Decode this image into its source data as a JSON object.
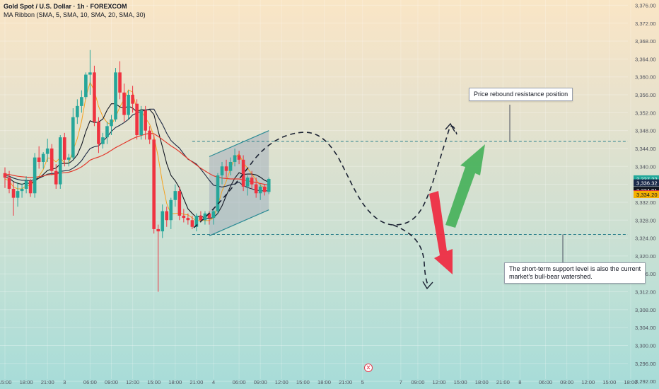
{
  "header": {
    "title": "Gold Spot / U.S. Dollar · 1h · FOREXCOM",
    "indicator": "MA Ribbon (SMA, 5, SMA, 10, SMA, 20, SMA, 30)"
  },
  "annotations": {
    "resistance_note": "Price rebound resistance position",
    "support_note_line1": "The short-term support level is also the current",
    "support_note_line2": "market's bull-bear watershed."
  },
  "chart_data": {
    "type": "candlestick",
    "symbol": "Gold Spot / U.S. Dollar",
    "interval": "1h",
    "source": "FOREXCOM",
    "ylim": [
      3291,
      3377
    ],
    "yticks": [
      3292,
      3296,
      3300,
      3304,
      3308,
      3312,
      3316,
      3320,
      3324,
      3328,
      3332,
      3336,
      3340,
      3344,
      3348,
      3352,
      3356,
      3360,
      3364,
      3368,
      3372,
      3376
    ],
    "ytick_labels": [
      "3,292.00",
      "3,296.00",
      "3,300.00",
      "3,304.00",
      "3,308.00",
      "3,312.00",
      "3,316.00",
      "3,320.00",
      "3,324.00",
      "3,328.00",
      "3,332.00",
      "3,336.00",
      "3,340.00",
      "3,344.00",
      "3,348.00",
      "3,352.00",
      "3,356.00",
      "3,360.00",
      "3,364.00",
      "3,368.00",
      "3,372.00",
      "3,376.00"
    ],
    "xtick_labels": [
      "15:00",
      "18:00",
      "21:00",
      "3",
      "06:00",
      "09:00",
      "12:00",
      "15:00",
      "18:00",
      "21:00",
      "4",
      "06:00",
      "09:00",
      "12:00",
      "15:00",
      "18:00",
      "21:00",
      "5",
      "7",
      "09:00",
      "12:00",
      "15:00",
      "18:00",
      "21:00",
      "8",
      "06:00",
      "09:00",
      "12:00",
      "15:00",
      "18:00"
    ],
    "xtick_bar_index": [
      0,
      5,
      10,
      14,
      20,
      25,
      30,
      35,
      40,
      45,
      49,
      55,
      60,
      65,
      70,
      75,
      80,
      84,
      93,
      97,
      102,
      107,
      112,
      117,
      121,
      127,
      132,
      137,
      142,
      147
    ],
    "candles": [
      [
        3338.5,
        3339.8,
        3335.2,
        3337.5
      ],
      [
        3337.5,
        3339.0,
        3334.0,
        3335.0
      ],
      [
        3335.0,
        3336.5,
        3329.0,
        3333.0
      ],
      [
        3333.0,
        3336.5,
        3331.0,
        3334.5
      ],
      [
        3334.5,
        3336.2,
        3333.0,
        3335.0
      ],
      [
        3335.0,
        3337.8,
        3334.0,
        3336.8
      ],
      [
        3336.8,
        3337.2,
        3333.2,
        3334.0
      ],
      [
        3334.0,
        3343.0,
        3333.0,
        3342.0
      ],
      [
        3342.0,
        3344.5,
        3339.5,
        3341.0
      ],
      [
        3341.0,
        3343.2,
        3339.5,
        3342.8
      ],
      [
        3342.8,
        3346.2,
        3341.0,
        3344.0
      ],
      [
        3344.0,
        3345.0,
        3338.0,
        3339.0
      ],
      [
        3339.0,
        3340.5,
        3335.0,
        3336.0
      ],
      [
        3336.0,
        3347.0,
        3335.0,
        3346.5
      ],
      [
        3346.5,
        3347.5,
        3340.0,
        3341.5
      ],
      [
        3341.5,
        3342.8,
        3340.0,
        3342.0
      ],
      [
        3342.0,
        3353.0,
        3341.5,
        3351.0
      ],
      [
        3351.0,
        3355.0,
        3349.5,
        3353.5
      ],
      [
        3353.5,
        3357.0,
        3352.0,
        3355.5
      ],
      [
        3355.5,
        3361.0,
        3355.0,
        3360.5
      ],
      [
        3360.5,
        3366.0,
        3356.0,
        3361.0
      ],
      [
        3361.0,
        3362.5,
        3349.0,
        3350.0
      ],
      [
        3350.0,
        3351.0,
        3343.0,
        3345.0
      ],
      [
        3345.0,
        3347.5,
        3344.0,
        3346.5
      ],
      [
        3346.5,
        3350.0,
        3345.0,
        3349.0
      ],
      [
        3349.0,
        3351.5,
        3347.0,
        3350.5
      ],
      [
        3350.5,
        3362.0,
        3350.0,
        3361.0
      ],
      [
        3361.0,
        3363.5,
        3355.0,
        3356.5
      ],
      [
        3356.5,
        3358.5,
        3350.0,
        3351.5
      ],
      [
        3351.5,
        3357.0,
        3350.5,
        3356.0
      ],
      [
        3356.0,
        3358.0,
        3352.0,
        3354.0
      ],
      [
        3354.0,
        3355.0,
        3346.0,
        3347.0
      ],
      [
        3347.0,
        3353.5,
        3346.0,
        3352.5
      ],
      [
        3352.5,
        3353.5,
        3346.0,
        3348.0
      ],
      [
        3348.0,
        3349.0,
        3345.0,
        3346.0
      ],
      [
        3346.0,
        3347.0,
        3325.0,
        3326.0
      ],
      [
        3326.0,
        3327.0,
        3312.0,
        3325.5
      ],
      [
        3325.5,
        3331.5,
        3324.0,
        3330.0
      ],
      [
        3330.0,
        3331.0,
        3326.5,
        3328.0
      ],
      [
        3328.0,
        3333.0,
        3326.0,
        3332.5
      ],
      [
        3332.5,
        3336.0,
        3331.0,
        3334.5
      ],
      [
        3334.5,
        3335.5,
        3328.0,
        3329.0
      ],
      [
        3329.0,
        3330.5,
        3327.5,
        3328.5
      ],
      [
        3328.5,
        3329.5,
        3327.0,
        3328.0
      ],
      [
        3328.0,
        3329.0,
        3326.0,
        3326.5
      ],
      [
        3326.5,
        3329.5,
        3325.5,
        3329.0
      ],
      [
        3329.0,
        3330.0,
        3327.5,
        3328.0
      ],
      [
        3328.0,
        3330.0,
        3327.0,
        3329.5
      ],
      [
        3329.5,
        3330.0,
        3327.0,
        3328.5
      ],
      [
        3328.5,
        3330.5,
        3327.0,
        3330.0
      ],
      [
        3330.0,
        3338.5,
        3329.5,
        3338.0
      ],
      [
        3338.0,
        3341.0,
        3336.0,
        3340.0
      ],
      [
        3340.0,
        3341.5,
        3337.5,
        3339.0
      ],
      [
        3339.0,
        3342.0,
        3338.0,
        3341.0
      ],
      [
        3341.0,
        3344.0,
        3340.0,
        3342.5
      ],
      [
        3342.5,
        3343.5,
        3340.5,
        3341.5
      ],
      [
        3341.5,
        3342.5,
        3334.5,
        3335.5
      ],
      [
        3335.5,
        3338.0,
        3333.5,
        3337.5
      ],
      [
        3337.5,
        3339.0,
        3335.0,
        3336.0
      ],
      [
        3336.0,
        3337.5,
        3333.0,
        3334.0
      ],
      [
        3334.0,
        3336.0,
        3332.5,
        3335.5
      ],
      [
        3335.5,
        3336.0,
        3333.5,
        3334.3
      ],
      [
        3334.3,
        3337.5,
        3333.8,
        3337.2
      ]
    ],
    "bar_x_start": 7,
    "bar_spacing": 6.02,
    "ma_lines": [
      {
        "color": "#f4a21f",
        "width": 1,
        "values": [
          3337.2,
          3336.8,
          3335.4,
          3335.0,
          3335.0,
          3335.7,
          3335.7,
          3336.8,
          3337.8,
          3339.3,
          3341.9,
          3341.8,
          3341.0,
          3342.0,
          3340.7,
          3340.8,
          3343.6,
          3346.2,
          3350.1,
          3355.4,
          3358.8,
          3356.9,
          3353.4,
          3351.1,
          3349.8,
          3349.3,
          3351.0,
          3353.3,
          3355.0,
          3357.1,
          3356.6,
          3352.6,
          3352.4,
          3350.8,
          3349.4,
          3346.8,
          3342.1,
          3336.4,
          3331.7,
          3329.4,
          3329.5,
          3329.6,
          3329.3,
          3329.2,
          3328.5,
          3327.8,
          3328.0,
          3327.9,
          3327.9,
          3328.6,
          3331.1,
          3334.5,
          3336.7,
          3339.5,
          3341.9,
          3342.8,
          3340.8,
          3339.6,
          3338.3,
          3337.0,
          3335.8,
          3335.2,
          3335.1
        ]
      },
      {
        "color": "#131722",
        "width": 1.1,
        "values": [
          3337.6,
          3337.4,
          3336.6,
          3336.2,
          3336.0,
          3336.3,
          3336.2,
          3336.8,
          3337.4,
          3338.2,
          3339.1,
          3339.4,
          3339.6,
          3340.6,
          3340.7,
          3340.7,
          3341.4,
          3342.6,
          3344.8,
          3347.8,
          3350.2,
          3349.8,
          3349.9,
          3350.6,
          3352.6,
          3354.0,
          3354.0,
          3353.3,
          3353.0,
          3353.5,
          3353.0,
          3352.2,
          3352.7,
          3352.6,
          3352.7,
          3351.6,
          3347.9,
          3344.4,
          3340.6,
          3338.0,
          3336.8,
          3335.2,
          3332.8,
          3330.5,
          3329.5,
          3328.6,
          3329.0,
          3328.4,
          3328.4,
          3328.6,
          3329.5,
          3331.2,
          3333.5,
          3335.6,
          3337.4,
          3338.6,
          3338.2,
          3338.3,
          3338.3,
          3338.1,
          3337.6,
          3336.9,
          3336.5
        ]
      },
      {
        "color": "#1f2a44",
        "width": 1.1,
        "values": [
          3338.0,
          3337.8,
          3337.4,
          3337.1,
          3336.9,
          3336.9,
          3336.8,
          3337.1,
          3337.4,
          3337.8,
          3338.3,
          3338.4,
          3338.5,
          3338.9,
          3339.0,
          3339.1,
          3339.6,
          3340.3,
          3341.3,
          3342.7,
          3344.0,
          3344.4,
          3344.6,
          3345.6,
          3346.6,
          3347.8,
          3348.7,
          3349.2,
          3349.8,
          3350.5,
          3351.5,
          3351.9,
          3352.3,
          3352.6,
          3352.8,
          3352.8,
          3351.0,
          3349.4,
          3347.4,
          3345.8,
          3344.9,
          3344.1,
          3342.8,
          3341.6,
          3341.1,
          3340.5,
          3339.4,
          3338.2,
          3336.9,
          3335.8,
          3335.6,
          3335.4,
          3335.6,
          3335.9,
          3336.1,
          3336.5,
          3335.7,
          3335.3,
          3335.0,
          3334.7,
          3334.6,
          3334.5,
          3334.6
        ]
      },
      {
        "color": "#e33b2e",
        "width": 1.2,
        "values": [
          3338.3,
          3338.2,
          3338.0,
          3337.8,
          3337.7,
          3337.6,
          3337.5,
          3337.6,
          3337.7,
          3337.9,
          3338.1,
          3338.2,
          3338.3,
          3338.5,
          3338.6,
          3338.7,
          3339.0,
          3339.4,
          3339.9,
          3340.6,
          3341.4,
          3341.8,
          3342.1,
          3342.5,
          3343.0,
          3343.6,
          3344.2,
          3344.7,
          3345.2,
          3345.7,
          3346.2,
          3346.6,
          3346.9,
          3347.2,
          3347.4,
          3347.3,
          3346.7,
          3346.0,
          3345.3,
          3344.6,
          3344.0,
          3343.3,
          3342.5,
          3341.7,
          3341.0,
          3340.3,
          3339.6,
          3339.0,
          3338.4,
          3337.9,
          3337.6,
          3337.4,
          3337.3,
          3337.2,
          3337.2,
          3337.2,
          3337.0,
          3336.8,
          3336.6,
          3336.4,
          3336.2,
          3336.0,
          3335.8
        ]
      }
    ],
    "channel": {
      "upper": [
        [
          48,
          3342.2
        ],
        [
          62,
          3348.0
        ]
      ],
      "lower": [
        [
          48,
          3324.5
        ],
        [
          62,
          3330.3
        ]
      ]
    },
    "resistance_level": 3345.6,
    "support_level": 3324.8,
    "price_labels": [
      {
        "value": 3337.22,
        "text": "3,337.22",
        "color": "#22a89a"
      },
      {
        "value": 3336.32,
        "text": "3,336.32",
        "color": "#1b2a4a"
      },
      {
        "value": 3334.91,
        "text": "3,334.91",
        "color": "#131722"
      },
      {
        "value": 3334.27,
        "text": "3,334.27",
        "color": "#f23645"
      },
      {
        "value": 3334.2,
        "text": "3,334.20",
        "color": "#f5b100"
      }
    ],
    "colors": {
      "up": "#26a69a",
      "down": "#ef3340",
      "channel_fill": "#9aa6b8",
      "dashed": "#2a7f8a",
      "arrow_up": "#46b15a",
      "arrow_down": "#ee2d43"
    }
  }
}
